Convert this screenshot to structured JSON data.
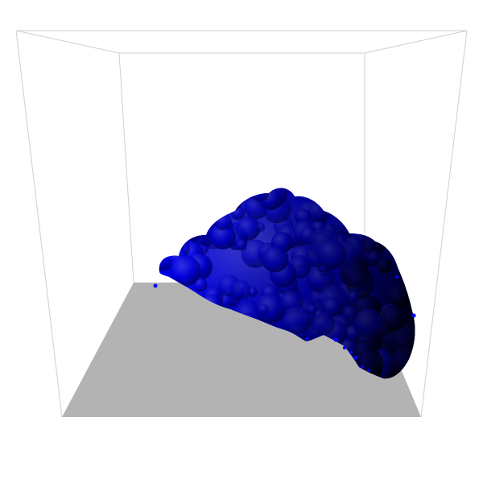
{
  "scene": {
    "background_color": "#ffffff",
    "box_edge_color": "#cfcfcf",
    "floor_color": "#b3b3b3",
    "object_color": "#0000ff",
    "object_shadow_color": "#00001a",
    "object_highlight_color": "#3a3aff"
  }
}
